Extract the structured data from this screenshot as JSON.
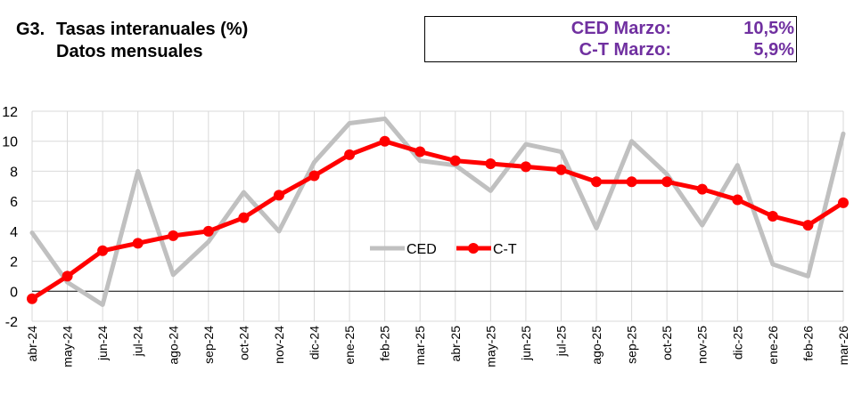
{
  "header": {
    "code": "G3.",
    "title": "Tasas interanuales (%)",
    "subtitle": "Datos mensuales"
  },
  "stats": [
    {
      "label": "CED Marzo:",
      "value": "10,5%"
    },
    {
      "label": "C-T Marzo:",
      "value": "5,9%"
    }
  ],
  "colors": {
    "ced": "#c0c0c0",
    "ct": "#ff0000",
    "stats_text": "#7030a0",
    "grid": "#d9d9d9",
    "axis": "#000000"
  },
  "chart_data": {
    "type": "line",
    "title": "Tasas interanuales (%)",
    "xlabel": "",
    "ylabel": "",
    "ylim": [
      -2,
      12
    ],
    "yticks": [
      -2,
      0,
      2,
      4,
      6,
      8,
      10,
      12
    ],
    "ytick_labels": [
      "-2",
      "0",
      "2",
      "4",
      "6",
      "8",
      "10",
      "12"
    ],
    "grid": true,
    "legend_position": "center",
    "categories": [
      "abr-24",
      "may-24",
      "jun-24",
      "jul-24",
      "ago-24",
      "sep-24",
      "oct-24",
      "nov-24",
      "dic-24",
      "ene-25",
      "feb-25",
      "mar-25",
      "abr-25",
      "may-25",
      "jun-25",
      "jul-25",
      "ago-25",
      "sep-25",
      "oct-25",
      "nov-25",
      "dic-25",
      "ene-26",
      "feb-26",
      "mar-26"
    ],
    "series": [
      {
        "name": "CED",
        "values": [
          3.9,
          0.6,
          -0.9,
          8.0,
          1.1,
          3.3,
          6.6,
          4.0,
          8.6,
          11.2,
          11.5,
          8.7,
          8.4,
          6.7,
          9.8,
          9.3,
          4.2,
          10.0,
          7.8,
          4.4,
          8.4,
          1.8,
          1.0,
          10.5
        ]
      },
      {
        "name": "C-T",
        "values": [
          -0.5,
          1.0,
          2.7,
          3.2,
          3.7,
          4.0,
          4.9,
          6.4,
          7.7,
          9.1,
          10.0,
          9.3,
          8.7,
          8.5,
          8.3,
          8.1,
          7.3,
          7.3,
          7.3,
          6.8,
          6.1,
          5.0,
          4.4,
          5.9
        ]
      }
    ]
  }
}
